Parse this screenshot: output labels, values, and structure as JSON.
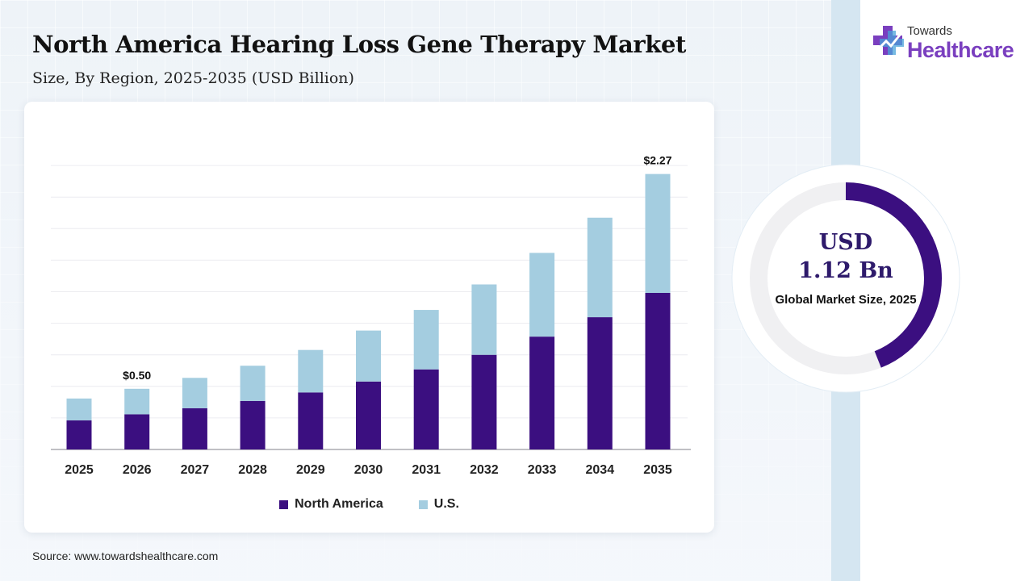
{
  "header": {
    "title": "North America Hearing Loss Gene Therapy Market",
    "subtitle": "Size, By Region, 2025-2035 (USD Billion)"
  },
  "logo": {
    "small_text": "Towards",
    "big_text": "Healthcare",
    "icon": "medical-cross-icon"
  },
  "chart_data": {
    "type": "bar",
    "stacked": true,
    "categories": [
      "2025",
      "2026",
      "2027",
      "2028",
      "2029",
      "2030",
      "2031",
      "2032",
      "2033",
      "2034",
      "2035"
    ],
    "series": [
      {
        "name": "North America",
        "color": "#3b0f80",
        "values": [
          0.24,
          0.29,
          0.34,
          0.4,
          0.47,
          0.56,
          0.66,
          0.78,
          0.93,
          1.09,
          1.29
        ]
      },
      {
        "name": "U.S.",
        "color": "#a4cde0",
        "values": [
          0.18,
          0.21,
          0.25,
          0.29,
          0.35,
          0.42,
          0.49,
          0.58,
          0.69,
          0.82,
          0.98
        ]
      }
    ],
    "data_labels": [
      {
        "category": "2026",
        "text": "$0.50"
      },
      {
        "category": "2035",
        "text": "$2.27"
      }
    ],
    "ylim": [
      0,
      2.6
    ],
    "grid": true,
    "legend_position": "bottom"
  },
  "donut": {
    "value_line1": "USD",
    "value_line2": "1.12 Bn",
    "caption": "Global Market Size, 2025",
    "share_fraction": 0.44,
    "fill_color": "#3b0f80",
    "track_color": "#f0f0f2"
  },
  "footer": {
    "source": "Source: www.towardshealthcare.com"
  }
}
